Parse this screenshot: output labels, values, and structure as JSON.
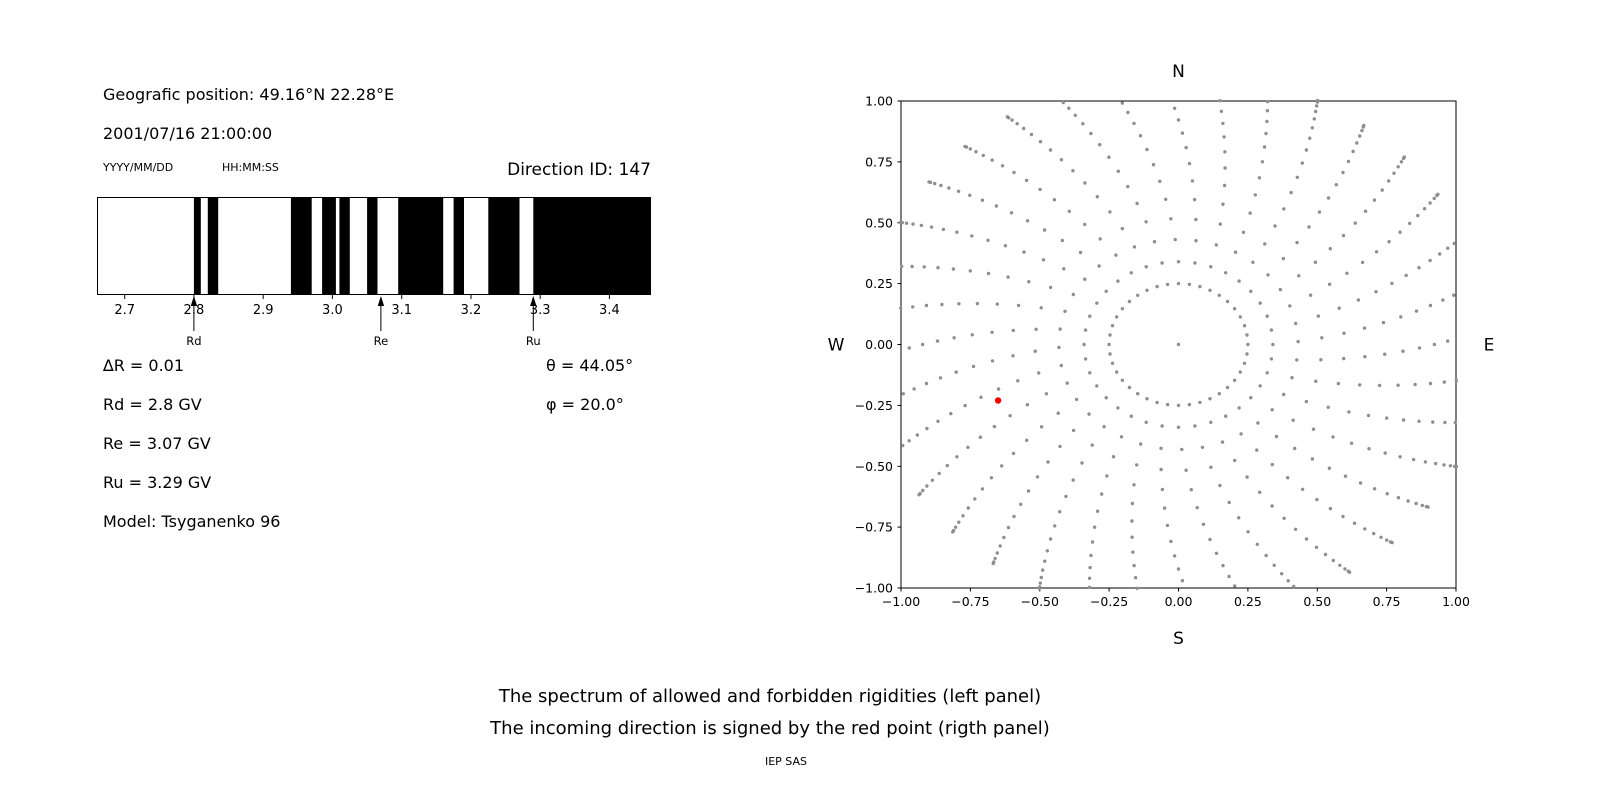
{
  "header": {
    "geographic_position": "Geografic position: 49.16°N 22.28°E",
    "datetime": "2001/07/16 21:00:00",
    "date_format_label": "YYYY/MM/DD",
    "time_format_label": "HH:MM:SS",
    "direction_id": "Direction ID: 147"
  },
  "parameters": {
    "delta_r": "∆R = 0.01",
    "rd": "Rd = 2.8 GV",
    "re": "Re = 3.07 GV",
    "ru": "Ru = 3.29 GV",
    "model": "Model: Tsyganenko 96",
    "theta": "θ = 44.05°",
    "phi": "φ = 20.0°"
  },
  "caption": {
    "line1": "The spectrum of allowed and forbidden rigidities (left panel)",
    "line2": "The incoming direction is signed by the red point (rigth panel)",
    "credit": "IEP SAS"
  },
  "chart_data": [
    {
      "type": "bar",
      "title": "",
      "xlim": [
        2.66,
        3.46
      ],
      "x_tick_values": [
        2.7,
        2.8,
        2.9,
        3.0,
        3.1,
        3.2,
        3.3,
        3.4
      ],
      "x_tick_labels": [
        "2.7",
        "2.8",
        "2.9",
        "3.0",
        "3.1",
        "3.2",
        "3.3",
        "3.4"
      ],
      "allowed_intervals": [
        [
          2.8,
          2.81
        ],
        [
          2.82,
          2.835
        ],
        [
          2.94,
          2.97
        ],
        [
          2.985,
          3.005
        ],
        [
          3.01,
          3.025
        ],
        [
          3.05,
          3.065
        ],
        [
          3.095,
          3.16
        ],
        [
          3.175,
          3.19
        ],
        [
          3.225,
          3.27
        ],
        [
          3.29,
          3.46
        ]
      ],
      "bar_color": "#000000",
      "markers": [
        {
          "label": "Rd",
          "value": 2.8
        },
        {
          "label": "Re",
          "value": 3.07
        },
        {
          "label": "Ru",
          "value": 3.29
        }
      ]
    },
    {
      "type": "scatter",
      "title": "",
      "xlim": [
        -1,
        1
      ],
      "ylim": [
        -1,
        1
      ],
      "x_tick_values": [
        -1,
        -0.75,
        -0.5,
        -0.25,
        0,
        0.25,
        0.5,
        0.75,
        1
      ],
      "x_tick_labels": [
        "−1.00",
        "−0.75",
        "−0.50",
        "−0.25",
        "0.00",
        "0.25",
        "0.50",
        "0.75",
        "1.00"
      ],
      "y_tick_values": [
        1,
        0.75,
        0.5,
        0.25,
        0,
        -0.25,
        -0.5,
        -0.75,
        -1
      ],
      "y_tick_labels": [
        "1.00",
        "0.75",
        "0.50",
        "0.25",
        "0.00",
        "−0.25",
        "−0.50",
        "−0.75",
        "−1.00"
      ],
      "compass": {
        "top": "N",
        "bottom": "S",
        "left": "W",
        "right": "E"
      },
      "dot_color": "#8e8e8e",
      "red_point": {
        "x": -0.65,
        "y": -0.23,
        "color": "#ff0000"
      },
      "pattern": {
        "center_dot": true,
        "inner_ring_radius": 0.25,
        "inner_ring_count": 40,
        "num_rays": 36,
        "ray_start_radius": 0.34,
        "ray_end_radius": 1.12,
        "dots_per_ray": 16,
        "end_cluster_exponent": 1.8,
        "spiral_rad_per_unit": 0.3
      }
    }
  ]
}
